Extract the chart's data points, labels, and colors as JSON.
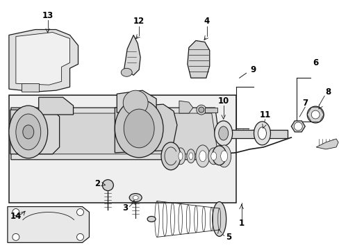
{
  "background_color": "#ffffff",
  "line_color": "#1a1a1a",
  "text_color": "#000000",
  "fill_light": "#f5f5f5",
  "fill_mid": "#e8e8e8",
  "fill_dark": "#d0d0d0",
  "fig_width": 4.89,
  "fig_height": 3.6,
  "dpi": 100
}
